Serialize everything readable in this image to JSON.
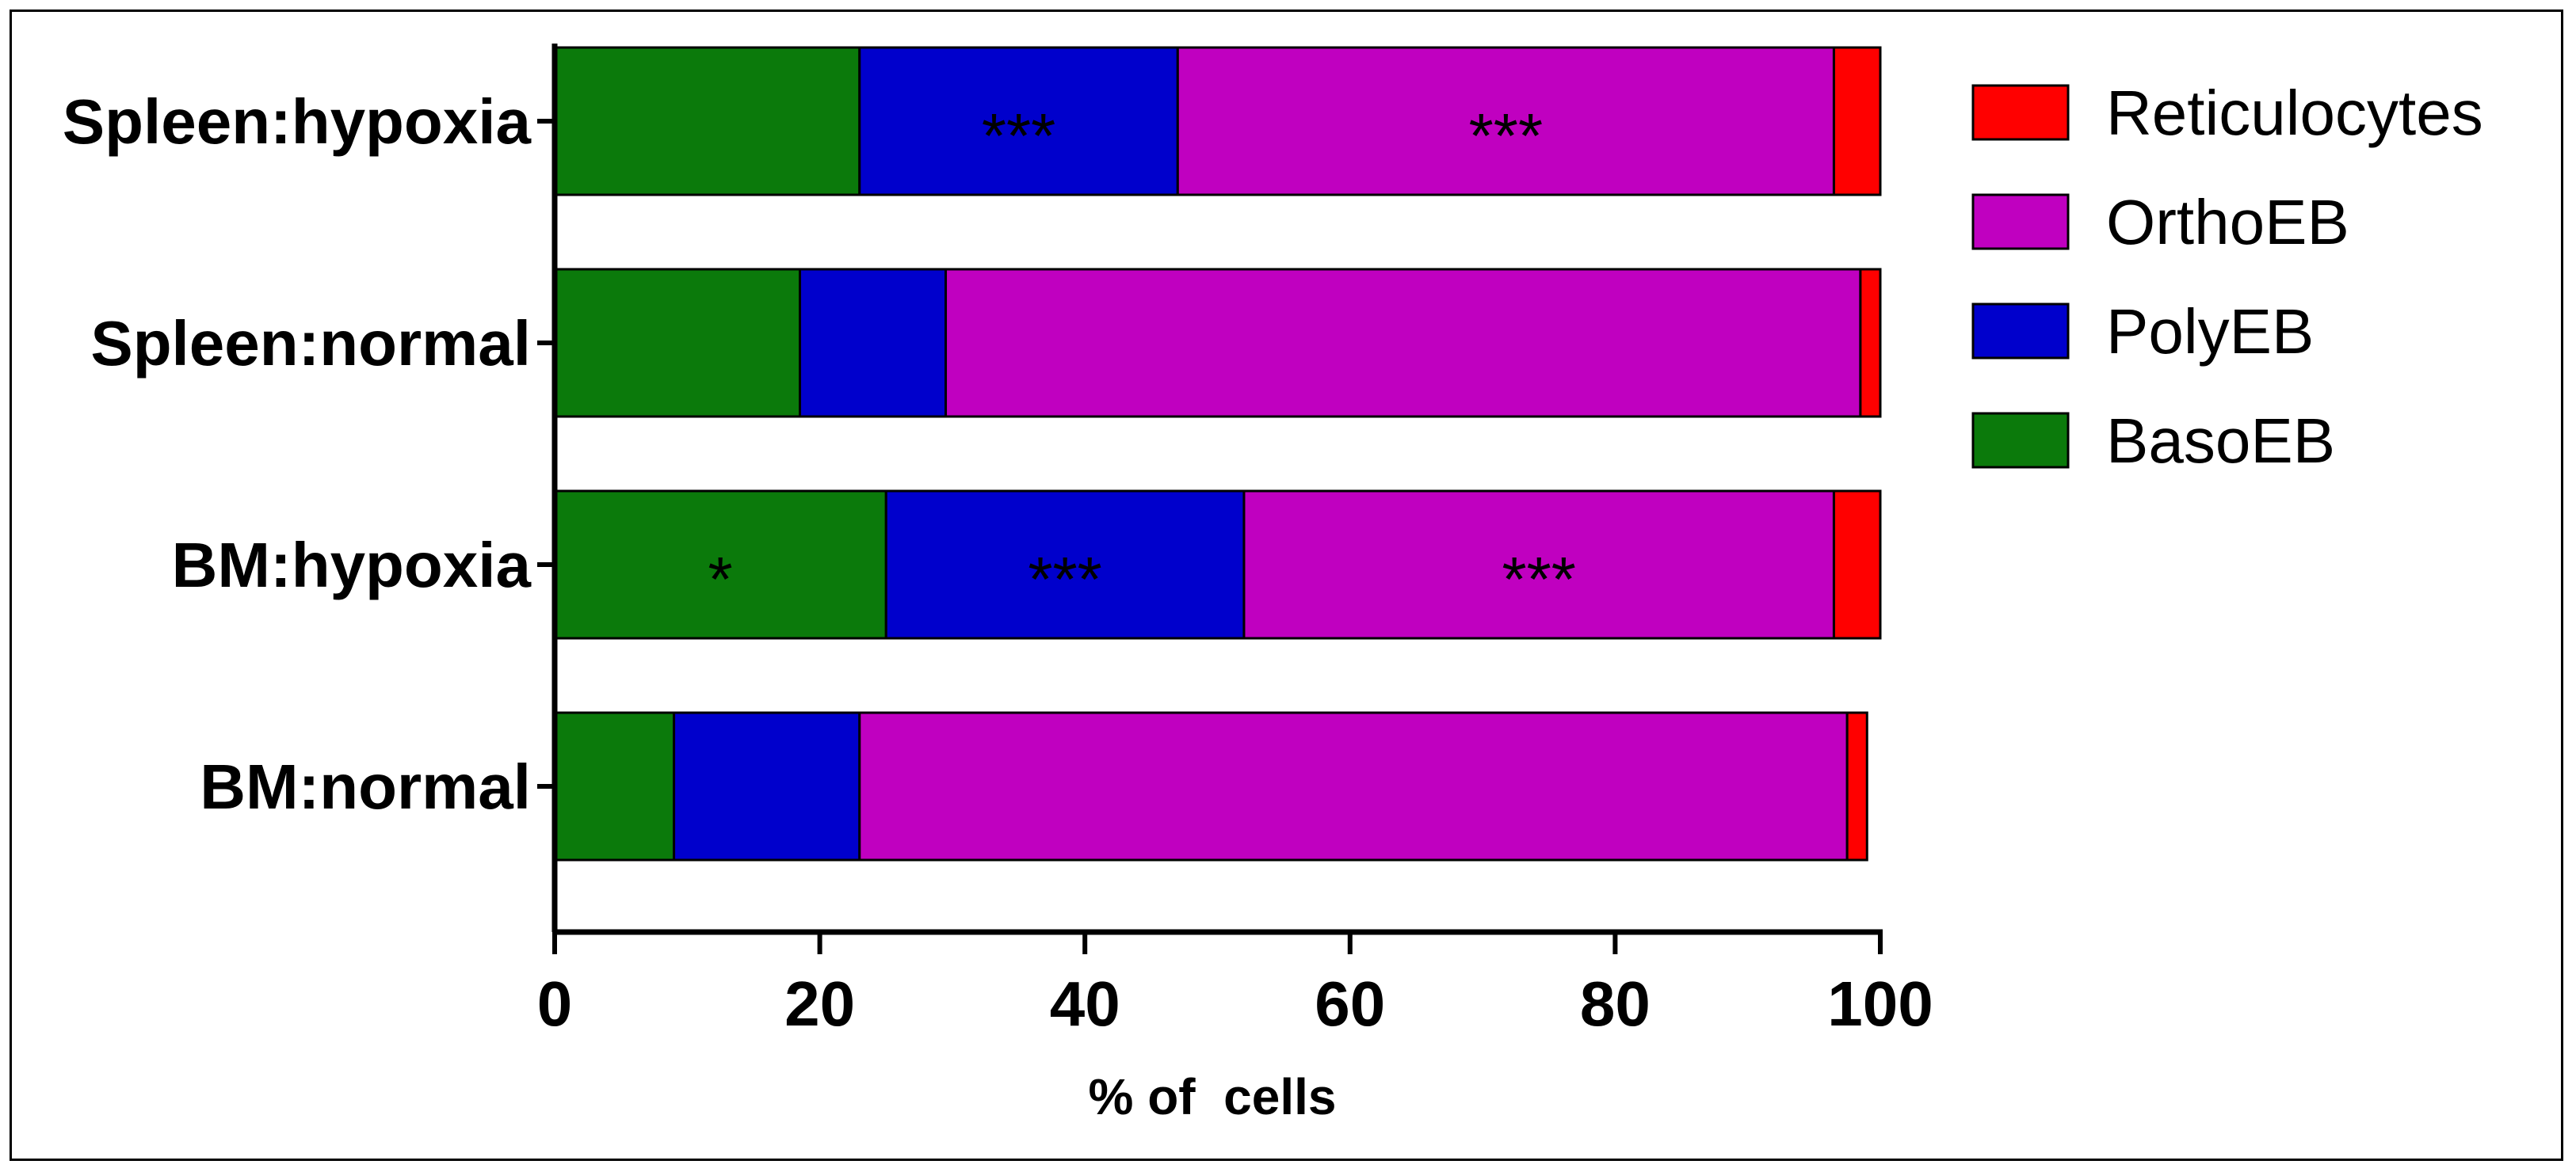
{
  "chart_data": {
    "type": "bar",
    "orientation": "horizontal",
    "stacked": true,
    "title": "",
    "categories": [
      "Spleen:hypoxia",
      "Spleen:normal",
      "BM:hypoxia",
      "BM:normal"
    ],
    "series": [
      {
        "name": "BasoEB",
        "color": "#0b7a0b",
        "values": [
          23,
          18.5,
          25,
          9
        ]
      },
      {
        "name": "PolyEB",
        "color": "#0000cc",
        "values": [
          24,
          11,
          27,
          14
        ]
      },
      {
        "name": "OrthoEB",
        "color": "#c000c0",
        "values": [
          49.5,
          69,
          44.5,
          74.5
        ]
      },
      {
        "name": "Reticulocytes",
        "color": "#ff0000",
        "values": [
          3.5,
          1.5,
          3.5,
          1.5
        ]
      }
    ],
    "legend_order": [
      "Reticulocytes",
      "OrthoEB",
      "PolyEB",
      "BasoEB"
    ],
    "annotations": [
      {
        "category": "Spleen:hypoxia",
        "series": "PolyEB",
        "text": "***"
      },
      {
        "category": "Spleen:hypoxia",
        "series": "OrthoEB",
        "text": "***"
      },
      {
        "category": "BM:hypoxia",
        "series": "BasoEB",
        "text": "*"
      },
      {
        "category": "BM:hypoxia",
        "series": "PolyEB",
        "text": "***"
      },
      {
        "category": "BM:hypoxia",
        "series": "OrthoEB",
        "text": "***"
      }
    ],
    "xlabel": "% of  cells",
    "ylabel": "",
    "xlim": [
      0,
      100
    ],
    "xticks": [
      0,
      20,
      40,
      60,
      80,
      100
    ],
    "grid": false,
    "legend_position": "top-right"
  }
}
